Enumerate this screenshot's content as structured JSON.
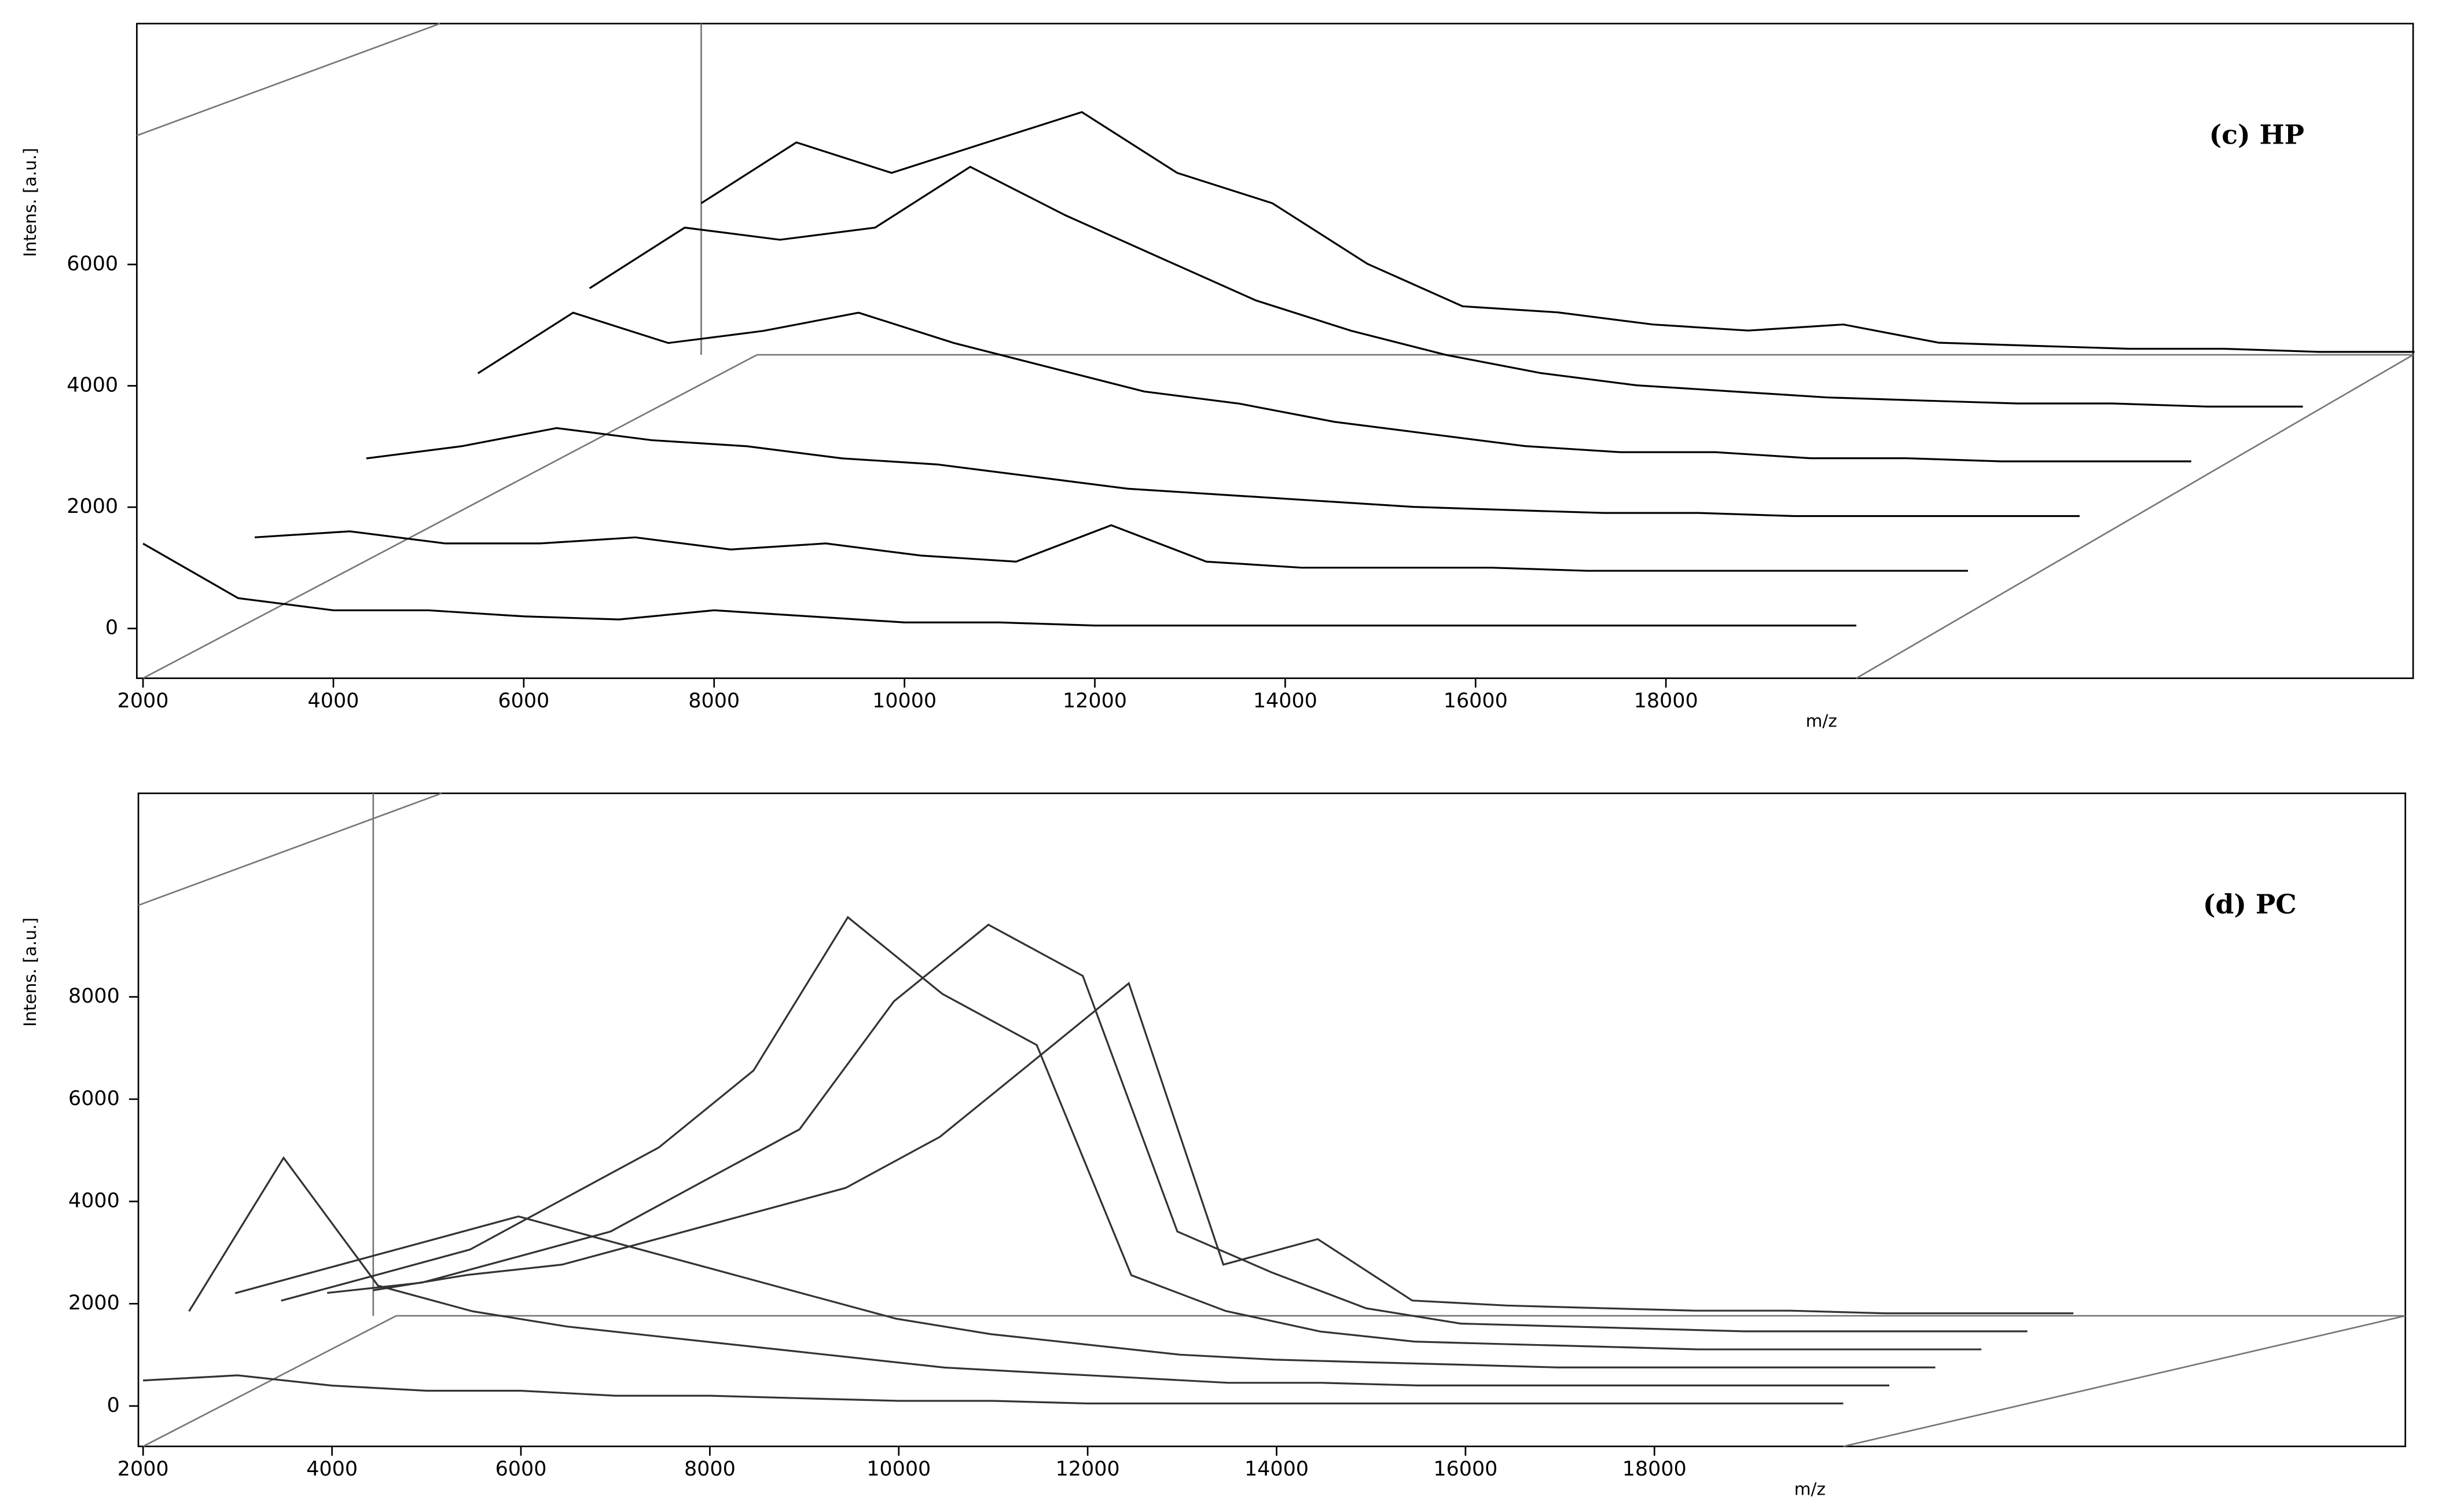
{
  "chart_data": [
    {
      "type": "waterfall",
      "annotation": "(c) HP",
      "xlabel": "m/z",
      "ylabel": "Intens. [a.u.]",
      "color": "#000000",
      "xlim": [
        1935,
        25850
      ],
      "ylim": [
        -820,
        9970
      ],
      "xticks": [
        2000,
        4000,
        6000,
        8000,
        10000,
        12000,
        14000,
        16000,
        18000
      ],
      "yticks": [
        0,
        2000,
        4000,
        6000
      ],
      "x": [
        2000,
        3000,
        4000,
        5000,
        6000,
        7000,
        8000,
        9000,
        10000,
        11000,
        12000,
        13000,
        14000,
        15000,
        16000,
        17000,
        18000,
        19000,
        20000
      ],
      "series": [
        {
          "values": [
            1400,
            500,
            300,
            300,
            200,
            150,
            300,
            200,
            100,
            100,
            50,
            50,
            50,
            50,
            50,
            50,
            50,
            50,
            50
          ]
        },
        {
          "values": [
            600,
            700,
            500,
            500,
            600,
            400,
            500,
            300,
            200,
            800,
            200,
            100,
            100,
            100,
            50,
            50,
            50,
            50,
            50
          ]
        },
        {
          "values": [
            1000,
            1200,
            1500,
            1300,
            1200,
            1000,
            900,
            700,
            500,
            400,
            300,
            200,
            150,
            100,
            100,
            50,
            50,
            50,
            50
          ]
        },
        {
          "values": [
            1500,
            2500,
            2000,
            2200,
            2500,
            2000,
            1600,
            1200,
            1000,
            700,
            500,
            300,
            200,
            200,
            100,
            100,
            50,
            50,
            50
          ]
        },
        {
          "values": [
            2000,
            3000,
            2800,
            3000,
            4000,
            3200,
            2500,
            1800,
            1300,
            900,
            600,
            400,
            300,
            200,
            150,
            100,
            100,
            50,
            50
          ]
        },
        {
          "values": [
            2500,
            3500,
            3000,
            3500,
            4000,
            3000,
            2500,
            1500,
            800,
            700,
            500,
            400,
            500,
            200,
            150,
            100,
            100,
            50,
            50
          ]
        }
      ]
    },
    {
      "type": "waterfall",
      "annotation": "(d) PC",
      "xlabel": "m/z",
      "ylabel": "Intens. [a.u.]",
      "color": "#333333",
      "xlim": [
        1950,
        25950
      ],
      "ylim": [
        -790,
        11980
      ],
      "xticks": [
        2000,
        4000,
        6000,
        8000,
        10000,
        12000,
        14000,
        16000,
        18000
      ],
      "yticks": [
        0,
        2000,
        4000,
        6000,
        8000
      ],
      "x": [
        2000,
        3000,
        4000,
        5000,
        6000,
        7000,
        8000,
        9000,
        10000,
        11000,
        12000,
        13000,
        14000,
        15000,
        16000,
        17000,
        18000,
        19000,
        20000
      ],
      "series": [
        {
          "values": [
            500,
            600,
            400,
            300,
            300,
            200,
            200,
            150,
            100,
            100,
            50,
            50,
            50,
            50,
            50,
            50,
            50,
            50,
            50
          ]
        },
        {
          "values": [
            1500,
            4500,
            2000,
            1500,
            1200,
            1000,
            800,
            600,
            400,
            300,
            200,
            100,
            100,
            50,
            50,
            50,
            50,
            50,
            50
          ]
        },
        {
          "values": [
            1500,
            2000,
            2500,
            3000,
            2500,
            2000,
            1500,
            1000,
            700,
            500,
            300,
            200,
            150,
            100,
            50,
            50,
            50,
            50,
            50
          ]
        },
        {
          "values": [
            1000,
            1500,
            2000,
            3000,
            4000,
            5500,
            8500,
            7000,
            6000,
            1500,
            800,
            400,
            200,
            150,
            100,
            50,
            50,
            50,
            50
          ]
        },
        {
          "values": [
            800,
            1000,
            1500,
            2000,
            3000,
            4000,
            6500,
            8000,
            7000,
            2000,
            1200,
            500,
            200,
            150,
            100,
            50,
            50,
            50,
            50
          ]
        },
        {
          "values": [
            500,
            800,
            1000,
            1500,
            2000,
            2500,
            3500,
            5000,
            6500,
            1000,
            1500,
            300,
            200,
            150,
            100,
            100,
            50,
            50,
            50
          ]
        }
      ]
    }
  ]
}
